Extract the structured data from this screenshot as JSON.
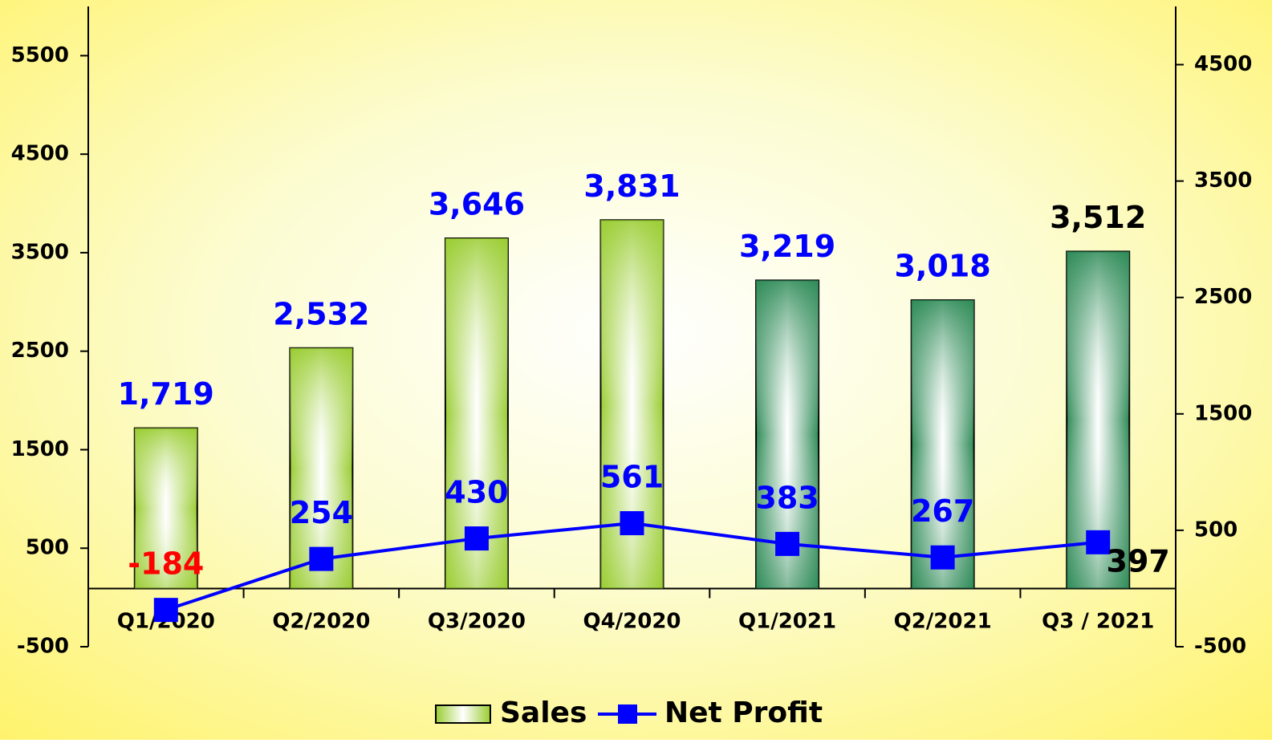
{
  "chart_data": {
    "type": "bar-line",
    "categories": [
      "Q1/2020",
      "Q2/2020",
      "Q3/2020",
      "Q4/2020",
      "Q1/2021",
      "Q2/2021",
      "Q3 / 2021"
    ],
    "series": [
      {
        "name": "Sales",
        "type": "bar",
        "axis": "y",
        "color": "#9acd32",
        "colors": [
          "#9acd32",
          "#9acd32",
          "#9acd32",
          "#9acd32",
          "#2e8b57",
          "#2e8b57",
          "#2e8b57"
        ],
        "values": [
          1719,
          2532,
          3646,
          3831,
          3219,
          3018,
          3512
        ],
        "value_labels": [
          "1,719",
          "2,532",
          "3,646",
          "3,831",
          "3,219",
          "3,018",
          "3,512"
        ],
        "label_colors": [
          "#0000ff",
          "#0000ff",
          "#0000ff",
          "#0000ff",
          "#0000ff",
          "#0000ff",
          "#000000"
        ]
      },
      {
        "name": "Net Profit",
        "type": "line",
        "axis": "y2",
        "color": "#0000ff",
        "values": [
          -184,
          254,
          430,
          561,
          383,
          267,
          397
        ],
        "label_colors": [
          "#ff0000",
          "#0000ff",
          "#0000ff",
          "#0000ff",
          "#0000ff",
          "#0000ff",
          "#000000"
        ]
      }
    ],
    "ylim": [
      -500,
      6000
    ],
    "yticks": [
      -500,
      500,
      1500,
      2500,
      3500,
      4500,
      5500
    ],
    "y2lim": [
      -500,
      5000
    ],
    "y2ticks": [
      -500,
      500,
      1500,
      2500,
      3500,
      4500
    ],
    "legend": "bottom"
  }
}
